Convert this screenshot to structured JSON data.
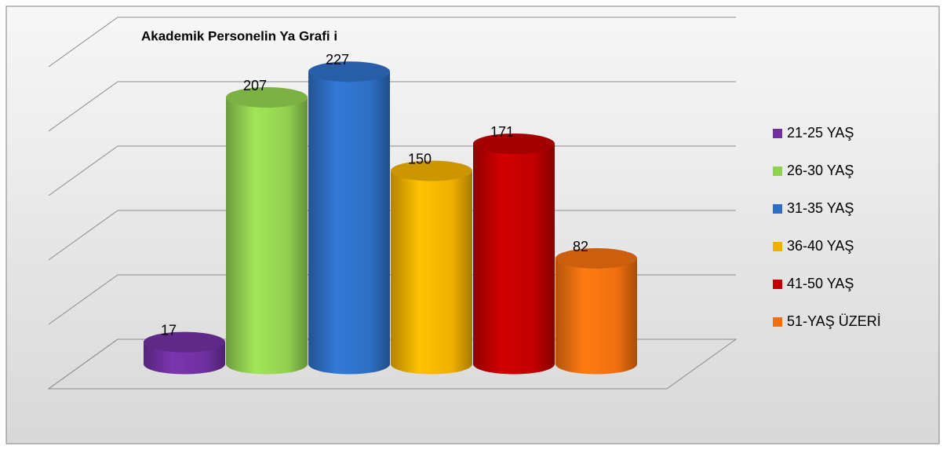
{
  "chart_data": {
    "type": "cylinder-bar",
    "title": "Akademik Personelin Ya   Grafi i",
    "categories": [
      "21-25 YAŞ",
      "26-30 YAŞ",
      "31-35 YAŞ",
      "36-40 YAŞ",
      "41-50 YAŞ",
      "51-YAŞ ÜZERİ"
    ],
    "values": [
      17,
      207,
      227,
      150,
      171,
      82
    ],
    "colors": [
      "#7030a0",
      "#92d050",
      "#2e6fc4",
      "#f0b000",
      "#c00000",
      "#f07010"
    ],
    "ylim": [
      0,
      250
    ],
    "yticks": [
      0,
      50,
      100,
      150,
      200,
      250
    ],
    "grid": true,
    "legend": "right"
  }
}
